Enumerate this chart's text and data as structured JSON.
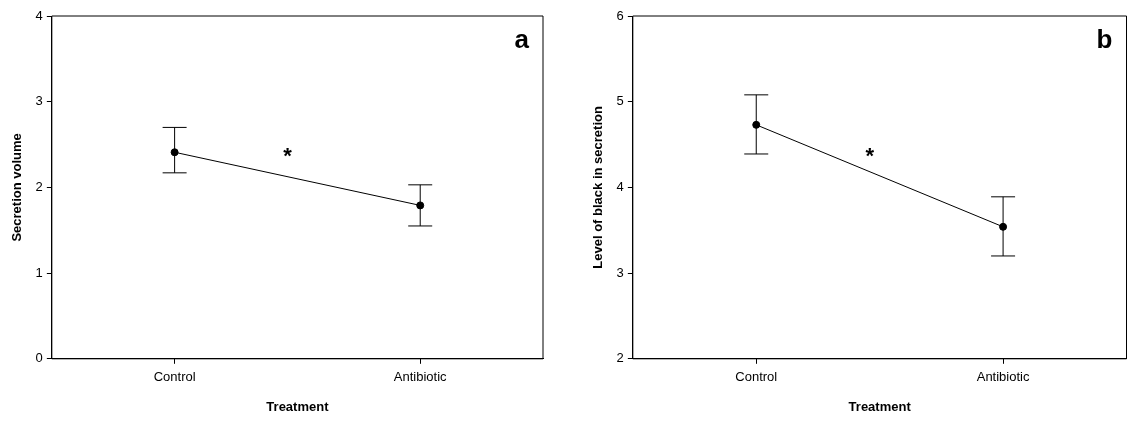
{
  "chart_data": [
    {
      "type": "line",
      "title": "a",
      "xlabel": "Treatment",
      "ylabel": "Secretion volume",
      "categories": [
        "Control",
        "Antibiotic"
      ],
      "series": [
        {
          "color": "#000000",
          "values": [
            2.41,
            1.79
          ],
          "errors": [
            [
              2.17,
              2.7
            ],
            [
              1.55,
              2.03
            ]
          ]
        }
      ],
      "ylim": [
        0,
        4
      ],
      "yticks": [
        0,
        1,
        2,
        3,
        4
      ],
      "marker": "circle",
      "line_style": "solid",
      "annotations": [
        "*"
      ]
    },
    {
      "type": "line",
      "title": "b",
      "xlabel": "Treatment",
      "ylabel": "Level of black in secretion",
      "categories": [
        "Control",
        "Antibiotic"
      ],
      "series": [
        {
          "color": "#000000",
          "values": [
            4.73,
            3.54
          ],
          "errors": [
            [
              4.39,
              5.08
            ],
            [
              3.2,
              3.89
            ]
          ]
        }
      ],
      "ylim": [
        2,
        6
      ],
      "yticks": [
        2,
        3,
        4,
        5,
        6
      ],
      "marker": "circle",
      "line_style": "solid",
      "annotations": [
        "*"
      ]
    }
  ]
}
